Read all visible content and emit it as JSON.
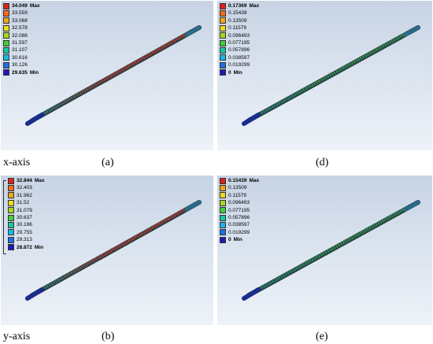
{
  "panels": [
    {
      "id": "a",
      "caption": "(a)",
      "axis_label": "x-axis",
      "legend": [
        "34.049",
        "33.559",
        "33.068",
        "32.578",
        "32.088",
        "31.597",
        "31.107",
        "30.616",
        "30.126",
        "29.635"
      ],
      "max_tag": "Max",
      "min_tag": "Min",
      "shaft_color": "#b03a3a"
    },
    {
      "id": "d",
      "caption": "(d)",
      "legend": [
        "0.17369",
        "0.15439",
        "0.13509",
        "0.11579",
        "0.096493",
        "0.077195",
        "0.057896",
        "0.038597",
        "0.019299",
        "0"
      ],
      "max_tag": "Max",
      "min_tag": "Min",
      "shaft_color": "#3a8a55"
    },
    {
      "id": "b",
      "caption": "(b)",
      "axis_label": "y-axis",
      "legend": [
        "32.844",
        "32.403",
        "31.962",
        "31.52",
        "31.079",
        "30.637",
        "30.196",
        "29.755",
        "29.313",
        "28.872"
      ],
      "max_tag": "Max",
      "min_tag": "Min",
      "shaft_color": "#b03a3a"
    },
    {
      "id": "e",
      "caption": "(e)",
      "legend": [
        "0.15439",
        "0.13509",
        "0.11579",
        "0.096493",
        "0.077195",
        "0.057896",
        "0.038597",
        "0.019299",
        "0"
      ],
      "max_tag": "Max",
      "min_tag": "Min",
      "shaft_color": "#3a8a55"
    }
  ],
  "colors": {
    "scale10": [
      "#e0201b",
      "#f26b18",
      "#f2a51a",
      "#eadc1c",
      "#a8d81e",
      "#3fcf3a",
      "#17c7a0",
      "#18b8e6",
      "#1f6fe6",
      "#1a1ab4"
    ],
    "scale9": [
      "#e0201b",
      "#f2a51a",
      "#eadc1c",
      "#a8d81e",
      "#3fcf3a",
      "#17c7a0",
      "#18b8e6",
      "#1f6fe6",
      "#1a1ab4"
    ]
  }
}
